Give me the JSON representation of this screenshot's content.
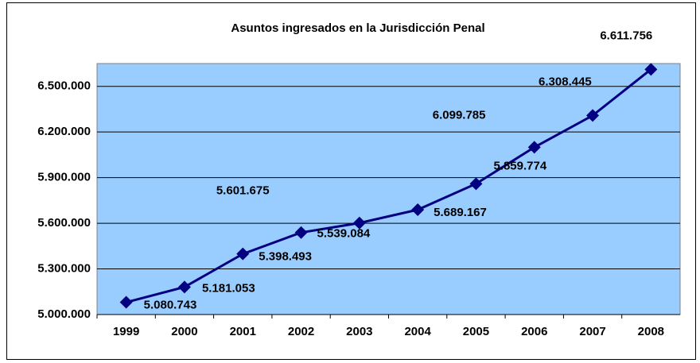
{
  "chart_data": {
    "type": "line",
    "title": "Asuntos ingresados en la Jurisdicción Penal",
    "categories": [
      "1999",
      "2000",
      "2001",
      "2002",
      "2003",
      "2004",
      "2005",
      "2006",
      "2007",
      "2008"
    ],
    "series": [
      {
        "color": "#000080",
        "values": [
          5080743,
          5181053,
          5398493,
          5539084,
          5601675,
          5689167,
          5859774,
          6099785,
          6308445,
          6611756
        ],
        "value_labels": [
          "5.080.743",
          "5.181.053",
          "5.398.493",
          "5.539.084",
          "5.601.675",
          "5.689.167",
          "5.859.774",
          "6.099.785",
          "6.308.445",
          "6.611.756"
        ]
      }
    ],
    "ylim": [
      5000000,
      6650000
    ],
    "yticks": [
      {
        "value": 5000000,
        "label": "5.000.000"
      },
      {
        "value": 5300000,
        "label": "5.300.000"
      },
      {
        "value": 5600000,
        "label": "5.600.000"
      },
      {
        "value": 5900000,
        "label": "5.900.000"
      },
      {
        "value": 6200000,
        "label": "6.200.000"
      },
      {
        "value": 6500000,
        "label": "6.500.000"
      }
    ],
    "grid": true,
    "plot_background": "#99ccff"
  }
}
